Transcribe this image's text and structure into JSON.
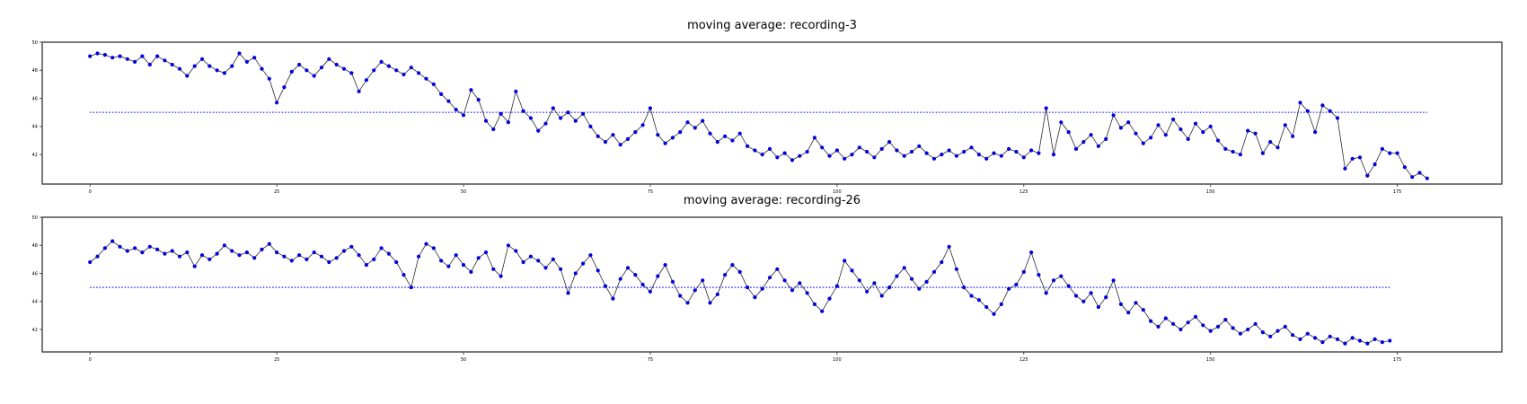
{
  "page": {
    "background": "#ffffff"
  },
  "colors": {
    "marker": "#0000dd",
    "data_line": "#2a2a2a",
    "threshold_line": "#3a3aff",
    "spine": "#4d4d4d",
    "tick_text": "#000000",
    "title_text": "#000000"
  },
  "chart_data": [
    {
      "type": "line",
      "title": "moving average: recording-3",
      "legend": null,
      "grid": false,
      "xticks": [
        0,
        25,
        50,
        75,
        100,
        125,
        150,
        175
      ],
      "yticks": [
        42,
        44,
        46,
        48,
        50
      ],
      "xlim": [
        -6.4,
        189
      ],
      "ylim": [
        39.9,
        50.0
      ],
      "threshold": 45.0,
      "x_step": 1,
      "values": [
        49.0,
        49.2,
        49.1,
        48.9,
        49.0,
        48.8,
        48.6,
        49.0,
        48.4,
        49.0,
        48.7,
        48.4,
        48.1,
        47.6,
        48.3,
        48.8,
        48.3,
        48.0,
        47.8,
        48.3,
        49.2,
        48.6,
        48.9,
        48.1,
        47.4,
        45.7,
        46.8,
        47.9,
        48.4,
        48.0,
        47.6,
        48.2,
        48.8,
        48.4,
        48.1,
        47.8,
        46.5,
        47.3,
        48.0,
        48.6,
        48.3,
        48.0,
        47.7,
        48.2,
        47.8,
        47.4,
        47.0,
        46.3,
        45.8,
        45.2,
        44.8,
        46.6,
        45.9,
        44.4,
        43.8,
        44.9,
        44.3,
        46.5,
        45.1,
        44.6,
        43.7,
        44.2,
        45.3,
        44.6,
        45.0,
        44.4,
        44.9,
        44.0,
        43.3,
        42.9,
        43.4,
        42.7,
        43.1,
        43.6,
        44.1,
        45.3,
        43.4,
        42.8,
        43.2,
        43.6,
        44.3,
        43.9,
        44.4,
        43.5,
        42.9,
        43.3,
        43.0,
        43.5,
        42.6,
        42.3,
        42.0,
        42.4,
        41.8,
        42.1,
        41.6,
        41.9,
        42.2,
        43.2,
        42.5,
        41.9,
        42.3,
        41.7,
        42.0,
        42.5,
        42.2,
        41.8,
        42.4,
        42.9,
        42.3,
        41.9,
        42.2,
        42.6,
        42.1,
        41.7,
        42.0,
        42.3,
        41.9,
        42.2,
        42.5,
        42.0,
        41.7,
        42.1,
        41.9,
        42.4,
        42.2,
        41.8,
        42.3,
        42.1,
        45.3,
        42.0,
        44.3,
        43.6,
        42.4,
        42.9,
        43.4,
        42.6,
        43.1,
        44.8,
        43.9,
        44.3,
        43.5,
        42.8,
        43.2,
        44.1,
        43.4,
        44.5,
        43.8,
        43.1,
        44.2,
        43.6,
        44.0,
        43.0,
        42.4,
        42.2,
        42.0,
        43.7,
        43.5,
        42.1,
        42.9,
        42.5,
        44.1,
        43.3,
        45.7,
        45.1,
        43.6,
        45.5,
        45.1,
        44.6,
        41.0,
        41.7,
        41.8,
        40.5,
        41.3,
        42.4,
        42.1,
        42.1,
        41.1,
        40.4,
        40.7,
        40.3
      ]
    },
    {
      "type": "line",
      "title": "moving average: recording-26",
      "legend": null,
      "grid": false,
      "xticks": [
        0,
        25,
        50,
        75,
        100,
        125,
        150,
        175
      ],
      "yticks": [
        42,
        44,
        46,
        48,
        50
      ],
      "xlim": [
        -6.4,
        189
      ],
      "ylim": [
        40.4,
        50.0
      ],
      "threshold": 45.0,
      "x_step": 1,
      "values": [
        46.8,
        47.2,
        47.8,
        48.3,
        47.9,
        47.6,
        47.8,
        47.5,
        47.9,
        47.7,
        47.4,
        47.6,
        47.2,
        47.5,
        46.5,
        47.3,
        47.0,
        47.4,
        48.0,
        47.6,
        47.3,
        47.5,
        47.1,
        47.7,
        48.1,
        47.5,
        47.2,
        46.9,
        47.3,
        47.0,
        47.5,
        47.2,
        46.8,
        47.1,
        47.6,
        47.9,
        47.3,
        46.6,
        47.0,
        47.8,
        47.4,
        46.8,
        45.9,
        45.0,
        47.2,
        48.1,
        47.8,
        46.9,
        46.5,
        47.3,
        46.6,
        46.1,
        47.1,
        47.5,
        46.3,
        45.8,
        48.0,
        47.6,
        46.8,
        47.2,
        46.9,
        46.4,
        47.0,
        46.3,
        44.6,
        46.0,
        46.7,
        47.3,
        46.2,
        45.1,
        44.2,
        45.6,
        46.4,
        45.9,
        45.2,
        44.7,
        45.8,
        46.6,
        45.4,
        44.4,
        43.9,
        44.8,
        45.5,
        43.9,
        44.5,
        45.9,
        46.6,
        46.1,
        45.0,
        44.3,
        44.9,
        45.7,
        46.3,
        45.5,
        44.8,
        45.3,
        44.6,
        43.8,
        43.3,
        44.2,
        45.1,
        46.9,
        46.2,
        45.5,
        44.7,
        45.3,
        44.4,
        45.0,
        45.8,
        46.4,
        45.6,
        44.9,
        45.4,
        46.1,
        46.8,
        47.9,
        46.3,
        45.0,
        44.4,
        44.1,
        43.6,
        43.1,
        43.8,
        44.9,
        45.2,
        46.1,
        47.5,
        45.9,
        44.6,
        45.5,
        45.8,
        45.1,
        44.4,
        44.0,
        44.6,
        43.6,
        44.3,
        45.5,
        43.8,
        43.2,
        43.9,
        43.4,
        42.6,
        42.2,
        42.8,
        42.4,
        42.0,
        42.5,
        42.9,
        42.3,
        41.9,
        42.2,
        42.7,
        42.1,
        41.7,
        42.0,
        42.4,
        41.8,
        41.5,
        41.9,
        42.2,
        41.6,
        41.3,
        41.7,
        41.4,
        41.1,
        41.5,
        41.3,
        41.0,
        41.4,
        41.2,
        41.0,
        41.3,
        41.1,
        41.2
      ]
    }
  ]
}
